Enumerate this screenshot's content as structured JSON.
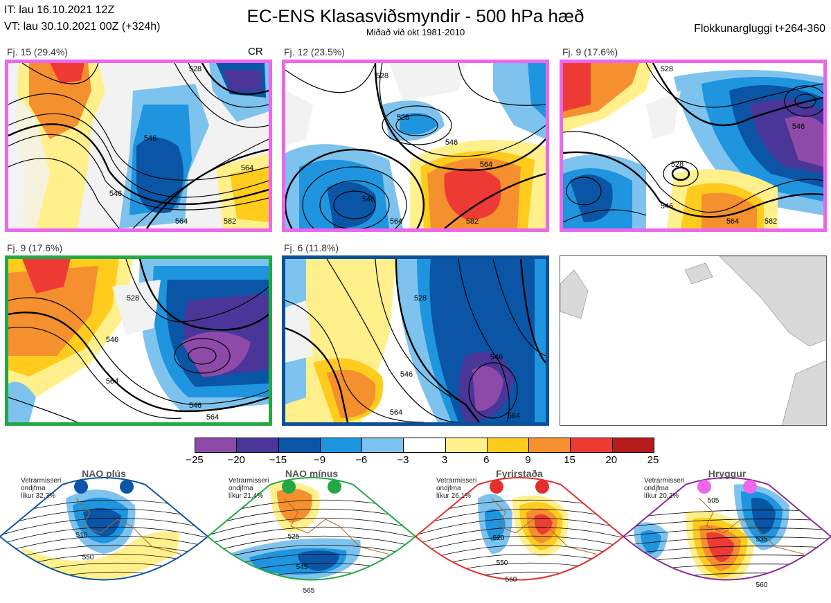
{
  "header": {
    "it_line": "IT: lau 16.10.2021 12Z",
    "vt_line": "VT: lau 30.10.2021 00Z  (+324h)",
    "title": "EC-ENS Klasasviðsmyndir - 500 hPa hæð",
    "subtitle": "Miðað við okt 1981-2010",
    "window": "Flokkunargluggi t+264-360"
  },
  "chart_data": [
    {
      "type": "heatmap",
      "title": "Fj. 15 (29.4%)",
      "tag": "CR",
      "border_color": "#ee66ee",
      "contour_labels": [
        "528",
        "546",
        "546",
        "564",
        "564",
        "582"
      ]
    },
    {
      "type": "heatmap",
      "title": "Fj. 12 (23.5%)",
      "border_color": "#ee66ee",
      "contour_labels": [
        "528",
        "528",
        "546",
        "546",
        "564",
        "564",
        "582"
      ]
    },
    {
      "type": "heatmap",
      "title": "Fj. 9 (17.6%)",
      "border_color": "#ee66ee",
      "contour_labels": [
        "528",
        "528",
        "546",
        "546",
        "564",
        "582"
      ]
    },
    {
      "type": "heatmap",
      "title": "Fj. 9 (17.6%)",
      "border_color": "#22a845",
      "contour_labels": [
        "528",
        "546",
        "546",
        "564",
        "564"
      ]
    },
    {
      "type": "heatmap",
      "title": "Fj. 6 (11.8%)",
      "border_color": "#0a4f9a",
      "contour_labels": [
        "528",
        "546",
        "546",
        "564",
        "564"
      ]
    }
  ],
  "colorbar": {
    "ticks": [
      "−25",
      "−20",
      "−15",
      "−9",
      "−6",
      "−3",
      "3",
      "6",
      "9",
      "15",
      "20",
      "25"
    ],
    "colors": [
      "#8e4aa8",
      "#4a3598",
      "#0a55a5",
      "#1e95de",
      "#7ec3ee",
      "#ffffff",
      "#fff08c",
      "#ffcc1e",
      "#f5902e",
      "#ee3a34",
      "#b41a1a"
    ]
  },
  "regimes": [
    {
      "name": "NAO plús",
      "color": "#0a55a5",
      "info": [
        "Vetrarmisseri",
        "ondjfma",
        "líkur 32,3%"
      ],
      "labels": [
        "510",
        "550"
      ]
    },
    {
      "name": "NAO mínus",
      "color": "#22a845",
      "info": [
        "Vetrarmisseri",
        "ondjfma",
        "líkur 21,4%"
      ],
      "labels": [
        "525",
        "545",
        "565"
      ]
    },
    {
      "name": "Fyrirstaða",
      "color": "#e42f2f",
      "info": [
        "Vetrarmisseri",
        "ondjfma",
        "líkur 26,1%"
      ],
      "labels": [
        "520",
        "550",
        "560"
      ]
    },
    {
      "name": "Hryggur",
      "color": "#ee66ee",
      "border": "#8b2a9a",
      "info": [
        "Vetrarmisseri",
        "ondjfma",
        "líkur 20,2%"
      ],
      "labels": [
        "505",
        "535",
        "560"
      ]
    }
  ]
}
